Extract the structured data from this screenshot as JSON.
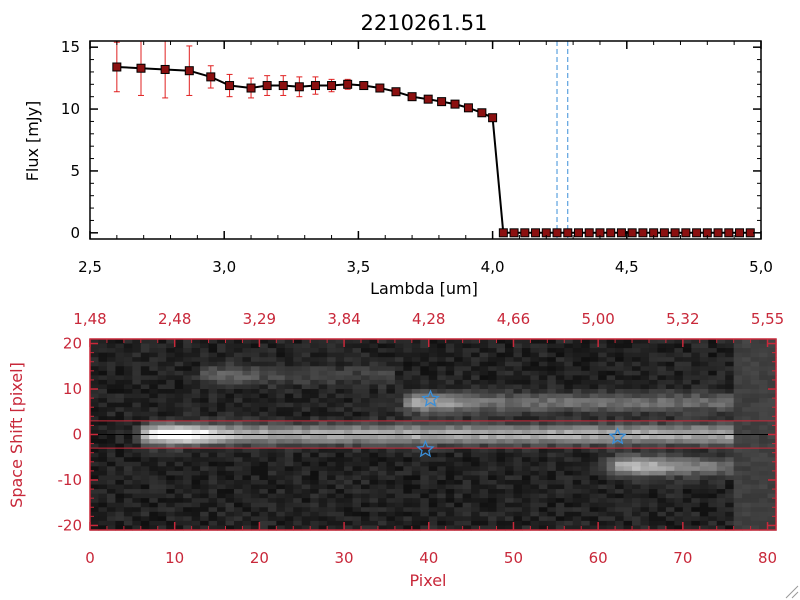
{
  "title": "2210261.51",
  "colors": {
    "axis_black": "#000000",
    "axis_red": "#c8283a",
    "marker_fill": "#8b1010",
    "error_bar": "#e02020",
    "dashed_line": "#3a8fd9",
    "star": "#3a8fd9"
  },
  "chart_data": [
    {
      "type": "line",
      "title": "2210261.51",
      "xlabel": "Lambda [um]",
      "ylabel": "Flux [mJy]",
      "xlim": [
        2.5,
        5.0
      ],
      "ylim": [
        -0.5,
        15.5
      ],
      "x_ticks": [
        2.5,
        3.0,
        3.5,
        4.0,
        4.5,
        5.0
      ],
      "x_tick_labels": [
        "2,5",
        "3,0",
        "3,5",
        "4,0",
        "4,5",
        "5,0"
      ],
      "y_ticks": [
        0,
        5,
        10,
        15
      ],
      "y_tick_labels": [
        "0",
        "5",
        "10",
        "15"
      ],
      "vertical_dashed_lines_x": [
        4.24,
        4.28
      ],
      "series": [
        {
          "x": [
            2.6,
            2.69,
            2.78,
            2.87,
            2.95,
            3.02,
            3.1,
            3.16,
            3.22,
            3.28,
            3.34,
            3.4,
            3.46,
            3.52,
            3.58,
            3.64,
            3.7,
            3.76,
            3.81,
            3.86,
            3.91,
            3.96,
            4.0,
            4.04,
            4.08,
            4.12,
            4.16,
            4.2,
            4.24,
            4.28,
            4.32,
            4.36,
            4.4,
            4.44,
            4.48,
            4.52,
            4.56,
            4.6,
            4.64,
            4.68,
            4.72,
            4.76,
            4.8,
            4.84,
            4.88,
            4.92,
            4.96
          ],
          "y": [
            13.4,
            13.3,
            13.2,
            13.1,
            12.6,
            11.9,
            11.7,
            11.9,
            11.9,
            11.8,
            11.9,
            11.9,
            12.0,
            11.9,
            11.7,
            11.4,
            11.0,
            10.8,
            10.6,
            10.4,
            10.1,
            9.7,
            9.3,
            0,
            0,
            0,
            0,
            0,
            0,
            0,
            0,
            0,
            0,
            0,
            0,
            0,
            0,
            0,
            0,
            0,
            0,
            0,
            0,
            0,
            0,
            0,
            0
          ],
          "yerr": [
            2.0,
            2.2,
            2.3,
            2.0,
            0.9,
            0.9,
            0.8,
            0.8,
            0.8,
            0.8,
            0.7,
            0.5,
            0.4,
            0.3,
            0.3,
            0.2,
            0.2,
            0.2,
            0.2,
            0.2,
            0.2,
            0.2,
            0.2,
            0,
            0,
            0,
            0,
            0,
            0,
            0,
            0,
            0,
            0,
            0,
            0,
            0,
            0,
            0,
            0,
            0,
            0,
            0,
            0,
            0,
            0,
            0,
            0
          ]
        }
      ]
    },
    {
      "type": "heatmap",
      "xlabel": "Pixel",
      "ylabel": "Space Shift [pixel]",
      "xlim": [
        0,
        81
      ],
      "ylim": [
        -21,
        21
      ],
      "x_ticks": [
        0,
        10,
        20,
        30,
        40,
        50,
        60,
        70,
        80
      ],
      "x_tick_labels": [
        "0",
        "10",
        "20",
        "30",
        "40",
        "50",
        "60",
        "70",
        "80"
      ],
      "y_ticks": [
        -20,
        -10,
        0,
        10,
        20
      ],
      "y_tick_labels": [
        "-20",
        "-10",
        "0",
        "10",
        "20"
      ],
      "top_axis_ticks": [
        0,
        10,
        20,
        30,
        40,
        50,
        60,
        70,
        80
      ],
      "top_axis_labels": [
        "1,48",
        "2,48",
        "3,29",
        "3,84",
        "4,28",
        "4,66",
        "5,00",
        "5,32",
        "5,55"
      ],
      "extraction_window_y": [
        -3,
        3
      ],
      "spectral_traces": [
        {
          "x_start": 7,
          "x_end": 75,
          "y": 0,
          "peak_x": 10.5,
          "peak_intensity": 1.0
        },
        {
          "x_start": 38,
          "x_end": 75,
          "y": 7,
          "peak_x": 40,
          "peak_intensity": 0.55
        },
        {
          "x_start": 62,
          "x_end": 75,
          "y": -7,
          "peak_x": 65,
          "peak_intensity": 0.6
        },
        {
          "x_start": 14,
          "x_end": 35,
          "y": 13,
          "peak_x": 16,
          "peak_intensity": 0.25
        }
      ],
      "star_markers": [
        {
          "x": 40.2,
          "y": 7.8
        },
        {
          "x": 39.6,
          "y": -3.3
        },
        {
          "x": 62.3,
          "y": -0.5
        }
      ]
    }
  ]
}
